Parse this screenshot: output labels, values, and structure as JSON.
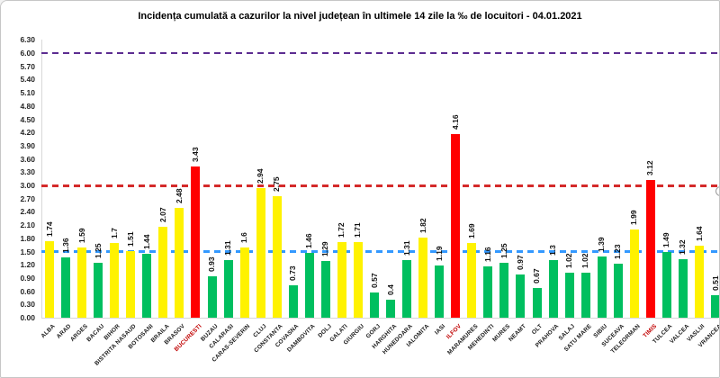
{
  "title": "Incidența cumulată a cazurilor la nivel județean în ultimele 14 zile la ‰ de locuitori - 04.01.2021",
  "chart_data": {
    "type": "bar",
    "title": "Incidența cumulată a cazurilor la nivel județean în ultimele 14 zile la ‰ de locuitori - 04.01.2021",
    "xlabel": "",
    "ylabel": "",
    "ylim": [
      0,
      6.3
    ],
    "grid": false,
    "legend": "none",
    "y_ticks": [
      "0.00",
      "0.30",
      "0.60",
      "0.90",
      "1.20",
      "1.50",
      "1.80",
      "2.10",
      "2.40",
      "2.70",
      "3.00",
      "3.30",
      "3.60",
      "3.90",
      "4.20",
      "4.50",
      "4.80",
      "5.10",
      "5.40",
      "5.70",
      "6.00",
      "6.30"
    ],
    "categories": [
      "ALBA",
      "ARAD",
      "ARGES",
      "BACAU",
      "BIHOR",
      "BISTRITA NASAUD",
      "BOTOSANI",
      "BRAILA",
      "BRASOV",
      "BUCURESTI",
      "BUZAU",
      "CALARASI",
      "CARAS-SEVERIN",
      "CLUJ",
      "CONSTANTA",
      "COVASNA",
      "DAMBOVITA",
      "DOLJ",
      "GALATI",
      "GIURGIU",
      "GORJ",
      "HARGHITA",
      "HUNEDOARA",
      "IALOMITA",
      "IASI",
      "ILFOV",
      "MARAMURES",
      "MEHEDINTI",
      "MURES",
      "NEAMT",
      "OLT",
      "PRAHOVA",
      "SALAJ",
      "SATU MARE",
      "SIBIU",
      "SUCEAVA",
      "TELEORMAN",
      "TIMIS",
      "TULCEA",
      "VALCEA",
      "VASLUI",
      "VRANCEA"
    ],
    "values": [
      1.74,
      1.36,
      1.59,
      1.25,
      1.7,
      1.51,
      1.44,
      2.07,
      2.48,
      3.43,
      0.93,
      1.31,
      1.6,
      2.94,
      2.75,
      0.73,
      1.46,
      1.29,
      1.72,
      1.71,
      0.57,
      0.4,
      1.31,
      1.82,
      1.19,
      4.16,
      1.69,
      1.16,
      1.25,
      0.97,
      0.67,
      1.3,
      1.02,
      1.02,
      1.39,
      1.23,
      1.99,
      3.12,
      1.49,
      1.32,
      1.64,
      0.51
    ],
    "value_labels": [
      "1.74",
      "1.36",
      "1.59",
      "1.25",
      "1.7",
      "1.51",
      "1.44",
      "2.07",
      "2.48",
      "3.43",
      "0.93",
      "1.31",
      "1.6",
      "2.94",
      "2.75",
      "0.73",
      "1.46",
      "1.29",
      "1.72",
      "1.71",
      "0.57",
      "0.4",
      "1.31",
      "1.82",
      "1.19",
      "4.16",
      "1.69",
      "1.16",
      "1.25",
      "0.97",
      "0.67",
      "1.3",
      "1.02",
      "1.02",
      "1.39",
      "1.23",
      "1.99",
      "3.12",
      "1.49",
      "1.32",
      "1.64",
      "0.51"
    ],
    "bar_colors": [
      "yellow",
      "green",
      "yellow",
      "green",
      "yellow",
      "yellow",
      "green",
      "yellow",
      "yellow",
      "red",
      "green",
      "green",
      "yellow",
      "yellow",
      "yellow",
      "green",
      "green",
      "green",
      "yellow",
      "yellow",
      "green",
      "green",
      "green",
      "yellow",
      "green",
      "red",
      "yellow",
      "green",
      "green",
      "green",
      "green",
      "green",
      "green",
      "green",
      "green",
      "green",
      "yellow",
      "red",
      "green",
      "green",
      "yellow",
      "green"
    ],
    "palette": {
      "green": "#00BF5F",
      "yellow": "#FFF200",
      "red": "#FF0000"
    },
    "x_label_color_default": "#1a1a1a",
    "x_label_color_highlight": "#C00000",
    "reference_lines": [
      {
        "value": 6.0,
        "color": "#5C2D91"
      },
      {
        "value": 3.0,
        "color": "#D42A2A"
      },
      {
        "value": 1.5,
        "color": "#3399FF"
      }
    ]
  }
}
